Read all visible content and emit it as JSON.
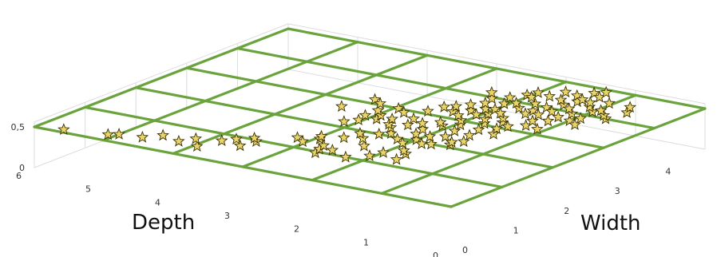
{
  "chart_data": {
    "type": "scatter",
    "projection": "3d",
    "title": "",
    "xlabel": "Width",
    "ylabel": "Depth",
    "zlabel": "",
    "xlim": [
      0,
      5
    ],
    "ylim": [
      0,
      6
    ],
    "zlim": [
      0,
      0.5
    ],
    "x_ticks": [
      "0",
      "1",
      "2",
      "3",
      "4"
    ],
    "y_ticks": [
      "0",
      "1",
      "2",
      "3",
      "4",
      "5",
      "6"
    ],
    "z_ticks": [
      "0",
      "0.5"
    ],
    "grid": true,
    "marker": "star",
    "colors": {
      "marker_fill": "#e8d46a",
      "marker_edge": "#3a3000",
      "plane_grid": "#6aa33c",
      "axis_grid": "#dcdcdc"
    },
    "plane": {
      "z": 0.5,
      "x_divisions": 5,
      "y_divisions": 6
    },
    "points": [
      [
        0.1,
        5.65,
        0.5
      ],
      [
        0.22,
        5.1,
        0.5
      ],
      [
        0.3,
        5.0,
        0.5
      ],
      [
        0.35,
        4.7,
        0.5
      ],
      [
        0.55,
        4.55,
        0.5
      ],
      [
        0.45,
        4.25,
        0.5
      ],
      [
        0.65,
        4.15,
        0.5
      ],
      [
        0.4,
        3.95,
        0.5
      ],
      [
        0.9,
        3.75,
        0.5
      ],
      [
        0.75,
        3.85,
        0.5
      ],
      [
        0.7,
        3.55,
        0.5
      ],
      [
        1.05,
        3.6,
        0.5
      ],
      [
        0.95,
        3.5,
        0.5
      ],
      [
        1.45,
        2.95,
        0.5
      ],
      [
        1.35,
        3.2,
        0.5
      ],
      [
        1.25,
        3.05,
        0.5
      ],
      [
        1.55,
        3.0,
        0.5
      ],
      [
        1.65,
        2.75,
        0.5
      ],
      [
        1.25,
        2.75,
        0.5
      ],
      [
        1.1,
        2.7,
        0.5
      ],
      [
        0.95,
        2.65,
        0.5
      ],
      [
        1.15,
        2.55,
        0.5
      ],
      [
        1.0,
        2.25,
        0.5
      ],
      [
        1.5,
        2.35,
        0.5
      ],
      [
        1.2,
        2.05,
        0.5
      ],
      [
        1.4,
        2.0,
        0.5
      ],
      [
        1.6,
        1.85,
        0.5
      ],
      [
        1.5,
        1.75,
        0.5
      ],
      [
        1.25,
        1.7,
        0.5
      ],
      [
        1.75,
        2.55,
        0.5
      ],
      [
        1.9,
        2.7,
        0.5
      ],
      [
        2.0,
        2.5,
        0.5
      ],
      [
        2.1,
        2.4,
        0.5
      ],
      [
        1.95,
        2.2,
        0.5
      ],
      [
        1.85,
        2.05,
        0.5
      ],
      [
        2.05,
        2.0,
        0.5
      ],
      [
        2.25,
        2.15,
        0.5
      ],
      [
        1.95,
        1.85,
        0.5
      ],
      [
        2.0,
        1.75,
        0.5
      ],
      [
        2.2,
        1.6,
        0.5
      ],
      [
        2.3,
        1.5,
        0.5
      ],
      [
        2.1,
        1.55,
        0.5
      ],
      [
        2.5,
        2.9,
        0.5
      ],
      [
        2.6,
        2.75,
        0.5
      ],
      [
        2.2,
        3.15,
        0.5
      ],
      [
        2.35,
        3.05,
        0.5
      ],
      [
        2.55,
        3.1,
        0.5
      ],
      [
        2.65,
        2.95,
        0.5
      ],
      [
        2.8,
        3.1,
        0.5
      ],
      [
        2.7,
        3.55,
        0.5
      ],
      [
        3.05,
        3.25,
        0.5
      ],
      [
        3.15,
        3.4,
        0.5
      ],
      [
        2.9,
        2.8,
        0.5
      ],
      [
        3.0,
        2.95,
        0.5
      ],
      [
        3.1,
        2.6,
        0.5
      ],
      [
        2.75,
        2.55,
        0.5
      ],
      [
        2.3,
        2.55,
        0.5
      ],
      [
        2.4,
        2.65,
        0.5
      ],
      [
        2.5,
        2.45,
        0.5
      ],
      [
        2.45,
        2.2,
        0.5
      ],
      [
        2.65,
        2.35,
        0.5
      ],
      [
        2.8,
        2.2,
        0.5
      ],
      [
        2.7,
        2.1,
        0.5
      ],
      [
        2.85,
        1.95,
        0.5
      ],
      [
        3.0,
        2.05,
        0.5
      ],
      [
        3.15,
        2.2,
        0.5
      ],
      [
        3.25,
        2.35,
        0.5
      ],
      [
        3.35,
        2.55,
        0.5
      ],
      [
        3.3,
        2.05,
        0.5
      ],
      [
        3.4,
        2.2,
        0.5
      ],
      [
        2.6,
        1.85,
        0.5
      ],
      [
        2.8,
        1.65,
        0.5
      ],
      [
        2.95,
        1.5,
        0.5
      ],
      [
        3.1,
        1.45,
        0.5
      ],
      [
        3.2,
        1.6,
        0.5
      ],
      [
        3.35,
        1.7,
        0.5
      ],
      [
        3.5,
        1.85,
        0.5
      ],
      [
        3.55,
        2.1,
        0.5
      ],
      [
        3.6,
        2.35,
        0.5
      ],
      [
        3.45,
        2.45,
        0.5
      ],
      [
        3.65,
        1.6,
        0.5
      ],
      [
        3.7,
        1.45,
        0.5
      ],
      [
        3.8,
        1.8,
        0.5
      ],
      [
        3.85,
        2.05,
        0.5
      ],
      [
        3.75,
        2.25,
        0.5
      ],
      [
        3.9,
        1.4,
        0.5
      ],
      [
        4.0,
        1.55,
        0.5
      ],
      [
        4.1,
        1.3,
        0.5
      ],
      [
        4.15,
        1.0,
        0.5
      ],
      [
        4.25,
        0.95,
        0.5
      ],
      [
        4.3,
        1.15,
        0.5
      ],
      [
        4.2,
        1.45,
        0.5
      ],
      [
        4.35,
        1.6,
        0.5
      ],
      [
        4.05,
        1.75,
        0.5
      ],
      [
        4.45,
        1.25,
        0.5
      ],
      [
        4.55,
        1.05,
        0.5
      ],
      [
        4.5,
        1.4,
        0.5
      ],
      [
        4.4,
        1.8,
        0.5
      ],
      [
        3.95,
        1.95,
        0.5
      ],
      [
        4.25,
        1.95,
        0.5
      ],
      [
        4.6,
        1.55,
        0.5
      ],
      [
        4.7,
        1.3,
        0.5
      ],
      [
        4.65,
        1.75,
        0.5
      ],
      [
        4.8,
        1.45,
        0.5
      ],
      [
        4.9,
        1.35,
        0.5
      ],
      [
        4.1,
        2.15,
        0.5
      ],
      [
        4.3,
        2.05,
        0.5
      ],
      [
        4.45,
        2.0,
        0.5
      ],
      [
        3.2,
        1.85,
        0.5
      ],
      [
        3.4,
        1.95,
        0.5
      ],
      [
        3.6,
        2.0,
        0.5
      ],
      [
        3.95,
        2.3,
        0.5
      ],
      [
        4.15,
        2.45,
        0.5
      ],
      [
        3.05,
        1.75,
        0.5
      ],
      [
        3.25,
        1.3,
        0.5
      ],
      [
        3.45,
        1.35,
        0.5
      ],
      [
        3.55,
        1.2,
        0.5
      ],
      [
        3.75,
        1.2,
        0.5
      ],
      [
        3.85,
        0.95,
        0.5
      ],
      [
        3.7,
        1.0,
        0.5
      ],
      [
        3.95,
        1.15,
        0.5
      ],
      [
        4.1,
        0.8,
        0.5
      ],
      [
        4.0,
        0.7,
        0.5
      ],
      [
        4.35,
        0.65,
        0.5
      ],
      [
        4.55,
        0.75,
        0.5
      ],
      [
        3.6,
        0.85,
        0.5
      ],
      [
        3.2,
        1.1,
        0.5
      ],
      [
        2.75,
        1.4,
        0.5
      ],
      [
        2.55,
        1.6,
        0.5
      ],
      [
        2.35,
        1.8,
        0.5
      ],
      [
        2.25,
        1.95,
        0.5
      ],
      [
        3.8,
        1.6,
        0.5
      ],
      [
        4.4,
        1.4,
        0.5
      ]
    ]
  }
}
